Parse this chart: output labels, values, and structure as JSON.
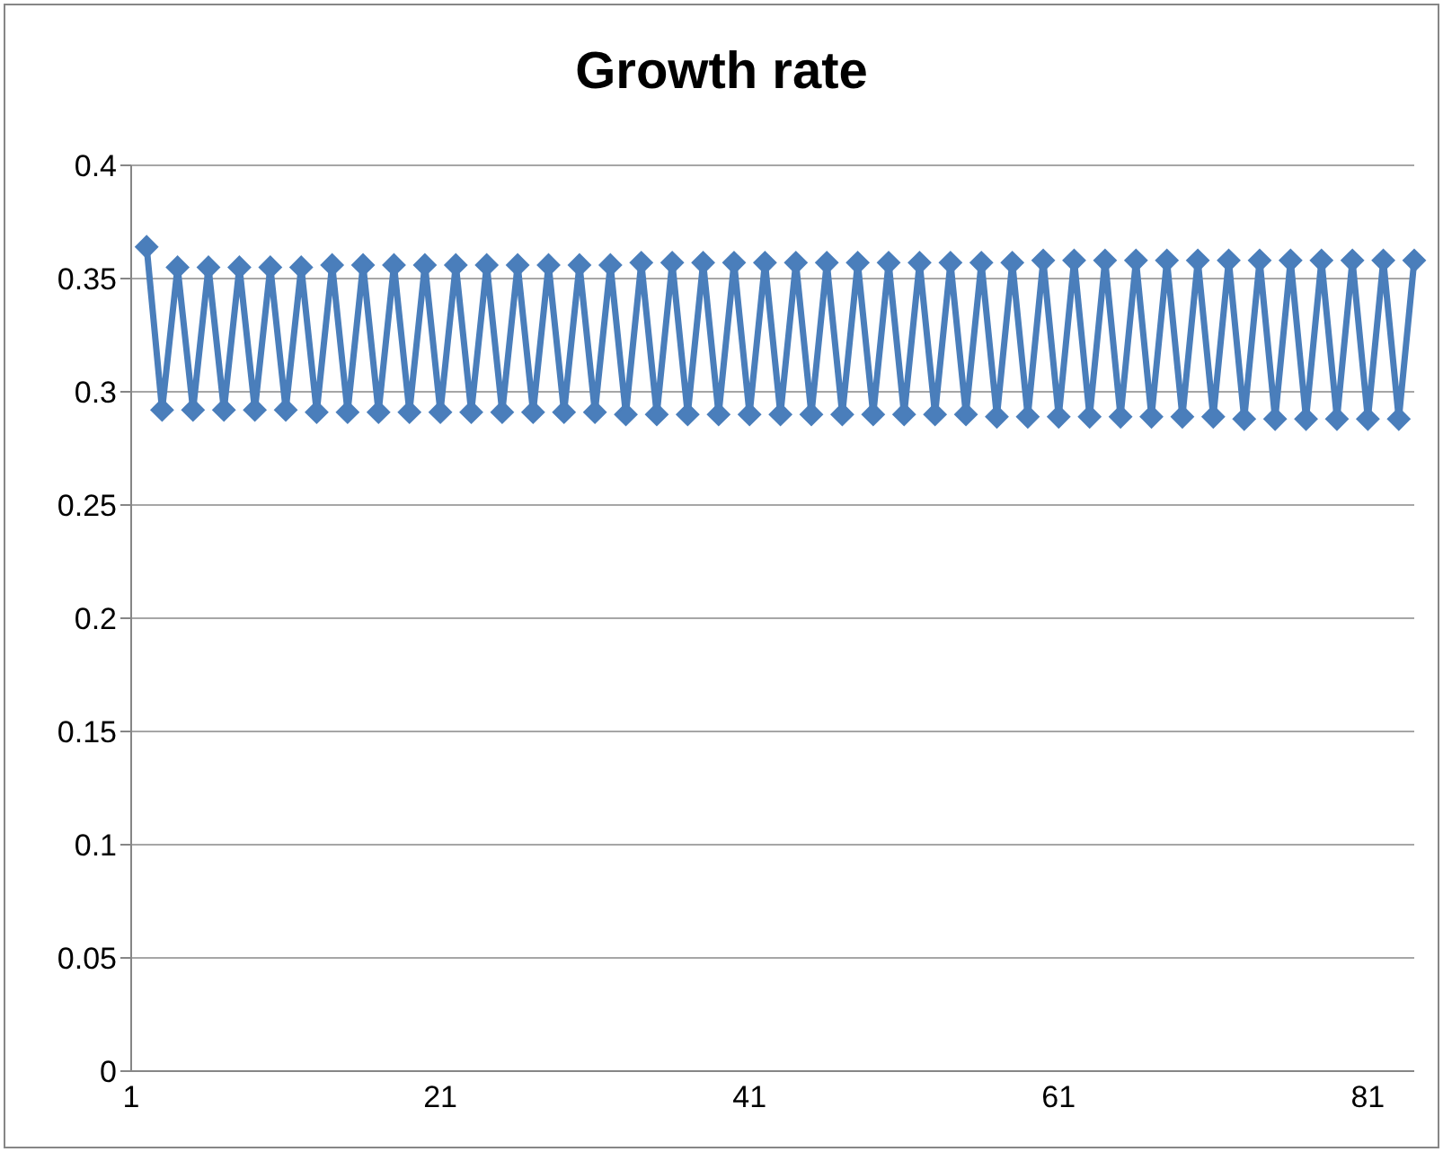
{
  "chart_data": {
    "type": "line",
    "title": "Growth rate",
    "categories": [
      "1",
      null,
      null,
      null,
      null,
      null,
      null,
      null,
      null,
      null,
      null,
      null,
      null,
      null,
      null,
      null,
      null,
      null,
      null,
      null,
      "21",
      null,
      null,
      null,
      null,
      null,
      null,
      null,
      null,
      null,
      null,
      null,
      null,
      null,
      null,
      null,
      null,
      null,
      null,
      null,
      "41",
      null,
      null,
      null,
      null,
      null,
      null,
      null,
      null,
      null,
      null,
      null,
      null,
      null,
      null,
      null,
      null,
      null,
      null,
      null,
      "61",
      null,
      null,
      null,
      null,
      null,
      null,
      null,
      null,
      null,
      null,
      null,
      null,
      null,
      null,
      null,
      null,
      null,
      null,
      null,
      "81",
      null,
      null,
      null
    ],
    "series": [
      {
        "color": "#4a7ebb",
        "values": [
          null,
          0.364,
          0.292,
          0.355,
          0.292,
          0.355,
          0.292,
          0.355,
          0.292,
          0.355,
          0.292,
          0.355,
          0.291,
          0.356,
          0.291,
          0.356,
          0.291,
          0.356,
          0.291,
          0.356,
          0.291,
          0.356,
          0.291,
          0.356,
          0.291,
          0.356,
          0.291,
          0.356,
          0.291,
          0.356,
          0.291,
          0.356,
          0.29,
          0.357,
          0.29,
          0.357,
          0.29,
          0.357,
          0.29,
          0.357,
          0.29,
          0.357,
          0.29,
          0.357,
          0.29,
          0.357,
          0.29,
          0.357,
          0.29,
          0.357,
          0.29,
          0.357,
          0.29,
          0.357,
          0.29,
          0.357,
          0.289,
          0.357,
          0.289,
          0.358,
          0.289,
          0.358,
          0.289,
          0.358,
          0.289,
          0.358,
          0.289,
          0.358,
          0.289,
          0.358,
          0.289,
          0.358,
          0.288,
          0.358,
          0.288,
          0.358,
          0.288,
          0.358,
          0.288,
          0.358,
          0.288,
          0.358,
          0.288,
          0.358
        ]
      }
    ],
    "ylim": [
      0,
      0.4
    ],
    "yticks": [
      0,
      0.05,
      0.1,
      0.15,
      0.2,
      0.25,
      0.3,
      0.35,
      0.4
    ],
    "grid": "y",
    "marker": "diamond",
    "line_style": "solid"
  }
}
